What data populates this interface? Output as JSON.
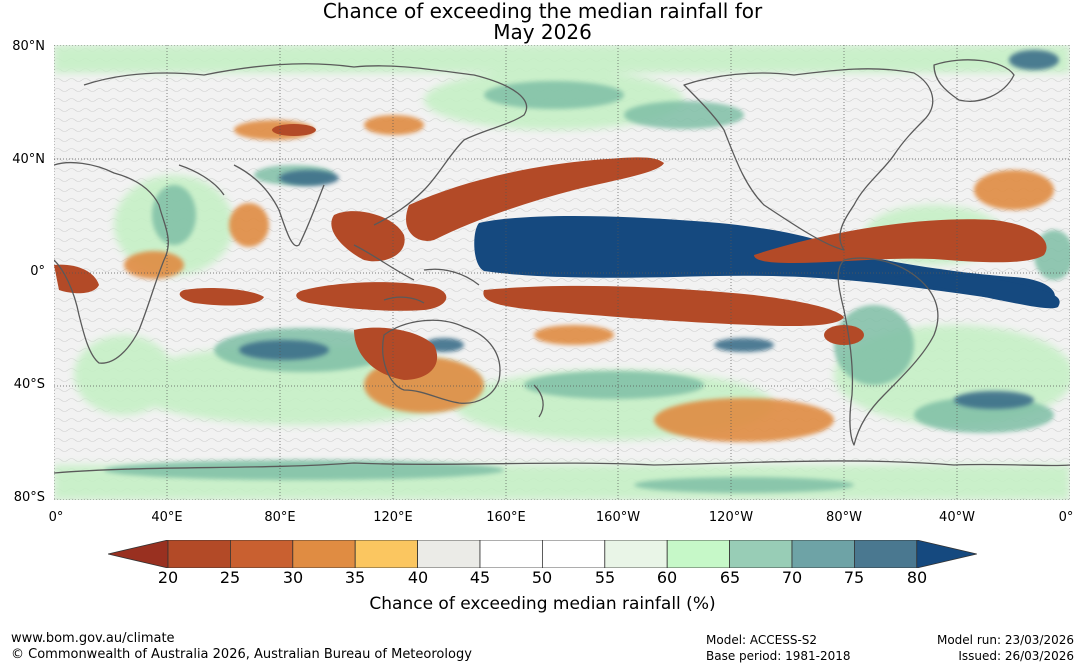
{
  "title_line1": "Chance of exceeding the median rainfall for",
  "title_line2": "May 2026",
  "lat_labels": [
    "80°N",
    "40°N",
    "0°",
    "40°S",
    "80°S"
  ],
  "lon_labels": [
    "0°",
    "40°E",
    "80°E",
    "120°E",
    "160°E",
    "160°W",
    "120°W",
    "80°W",
    "40°W",
    "0°"
  ],
  "colorbar": {
    "ticks": [
      "20",
      "25",
      "30",
      "35",
      "40",
      "45",
      "50",
      "55",
      "60",
      "65",
      "70",
      "75",
      "80"
    ],
    "colors": [
      "#993020",
      "#b34a27",
      "#c96030",
      "#e08c42",
      "#fbc660",
      "#ebebe7",
      "#ffffff",
      "#ffffff",
      "#e9f5e7",
      "#c6f8c8",
      "#98cdb6",
      "#6ea3a6",
      "#4a7890",
      "#15497f"
    ],
    "label": "Chance of exceeding median rainfall (%)"
  },
  "footer": {
    "url": "www.bom.gov.au/climate",
    "copyright": "© Commonwealth of Australia 2026, Australian Bureau of Meteorology",
    "model": "Model: ACCESS-S2",
    "base_period": "Base period: 1981-2018",
    "model_run": "Model run: 23/03/2026",
    "issued": "Issued: 26/03/2026"
  }
}
